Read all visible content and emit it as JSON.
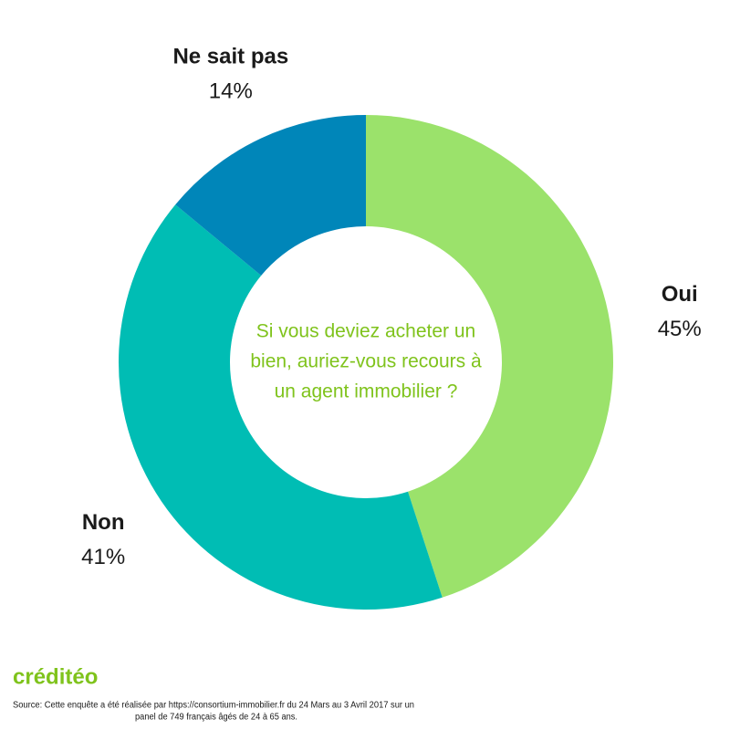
{
  "chart_data": {
    "type": "donut",
    "categories": [
      "Oui",
      "Non",
      "Ne sait pas"
    ],
    "values": [
      45,
      41,
      14
    ],
    "value_labels": [
      "45%",
      "41%",
      "14%"
    ],
    "colors": [
      "#9be26b",
      "#00bdb4",
      "#0086b9"
    ],
    "center_text": [
      "Si vous deviez acheter un",
      "bien, auriez-vous recours à",
      "un agent immobilier ?"
    ],
    "center_text_color": "#7fc31c"
  },
  "footer": {
    "logo": "créditéo",
    "source": [
      "Source: Cette enquête a été réalisée par https://consortium-immobilier.fr du 24 Mars au 3 Avril 2017 sur un",
      "panel de 749 français âgés de 24 à 65 ans."
    ]
  }
}
